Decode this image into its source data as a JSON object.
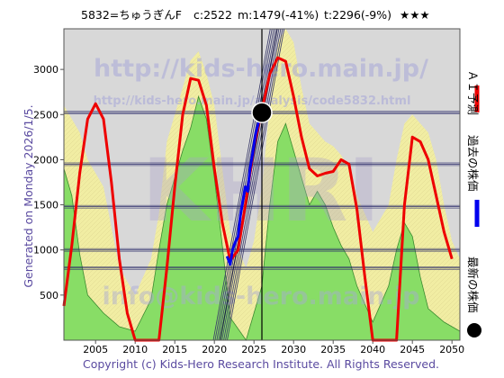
{
  "header": {
    "code_name": "5832=ちゅうぎんF",
    "current": "c:2522",
    "predicted_mean": "m:1479(-41%)",
    "target": "t:2296(-9%)",
    "rating": "★★★"
  },
  "left_label": "Generated on Monday 2026/1/5.",
  "footer": "Copyright (c) Kids-Hero Research Institute. All Rights Reserved.",
  "watermarks": {
    "url_main": "http://kids-hero.main.jp/",
    "url_sub": "http://kids-hero.main.jp/analysis/code5832.html",
    "logo": "KHRI",
    "email": "info@kids-hero.main.jp"
  },
  "legend": {
    "ai_forecast": "ＡＩ予測",
    "past_price": "過去の株価",
    "latest_price": "最新の株価"
  },
  "colors": {
    "forecast": "#ee0000",
    "past": "#0000ee",
    "latest": "#000000",
    "green_fill": "#88dd66",
    "yellow_fill": "#f2eea0",
    "band_lines": "#2a2a6a",
    "plot_bg": "#d8d8d8"
  },
  "chart_data": {
    "type": "line",
    "xlim": [
      2001,
      2051
    ],
    "ylim": [
      0,
      3450
    ],
    "x_ticks": [
      2005,
      2010,
      2015,
      2020,
      2025,
      2030,
      2035,
      2040,
      2045,
      2050
    ],
    "y_ticks": [
      500,
      1000,
      1500,
      2000,
      2500,
      3000
    ],
    "horizontal_lines": [
      2522,
      1950,
      1479,
      1000,
      800
    ],
    "vertical_line_x": 2026.0,
    "latest_point": {
      "x": 2026.0,
      "y": 2522
    },
    "ai_forecast": [
      [
        2001,
        380
      ],
      [
        2002,
        1050
      ],
      [
        2003,
        1850
      ],
      [
        2004,
        2450
      ],
      [
        2005,
        2620
      ],
      [
        2006,
        2450
      ],
      [
        2007,
        1750
      ],
      [
        2008,
        900
      ],
      [
        2009,
        300
      ],
      [
        2010,
        0
      ],
      [
        2013,
        0
      ],
      [
        2014,
        800
      ],
      [
        2015,
        1700
      ],
      [
        2016,
        2500
      ],
      [
        2017,
        2900
      ],
      [
        2018,
        2880
      ],
      [
        2019,
        2600
      ],
      [
        2020,
        1900
      ],
      [
        2021,
        1300
      ],
      [
        2022,
        880
      ],
      [
        2023,
        1000
      ],
      [
        2024,
        1550
      ],
      [
        2025,
        2150
      ],
      [
        2026,
        2550
      ],
      [
        2027,
        2950
      ],
      [
        2028,
        3130
      ],
      [
        2029,
        3090
      ],
      [
        2030,
        2700
      ],
      [
        2031,
        2250
      ],
      [
        2032,
        1900
      ],
      [
        2033,
        1820
      ],
      [
        2034,
        1850
      ],
      [
        2035,
        1870
      ],
      [
        2036,
        2000
      ],
      [
        2037,
        1950
      ],
      [
        2038,
        1450
      ],
      [
        2039,
        700
      ],
      [
        2040,
        0
      ],
      [
        2043,
        0
      ],
      [
        2044,
        1500
      ],
      [
        2045,
        2250
      ],
      [
        2046,
        2200
      ],
      [
        2047,
        2000
      ],
      [
        2048,
        1600
      ],
      [
        2049,
        1200
      ],
      [
        2050,
        900
      ]
    ],
    "past_price": [
      [
        2021.6,
        930
      ],
      [
        2022.0,
        840
      ],
      [
        2022.3,
        1000
      ],
      [
        2022.6,
        1080
      ],
      [
        2023.0,
        1150
      ],
      [
        2023.3,
        1390
      ],
      [
        2023.6,
        1550
      ],
      [
        2023.9,
        1700
      ],
      [
        2024.2,
        1650
      ],
      [
        2024.5,
        1900
      ],
      [
        2024.8,
        2050
      ],
      [
        2025.2,
        2280
      ],
      [
        2025.6,
        2420
      ],
      [
        2026.0,
        2522
      ]
    ],
    "bands_green_upper": [
      [
        2001,
        1900
      ],
      [
        2002,
        1600
      ],
      [
        2003,
        950
      ],
      [
        2004,
        500
      ],
      [
        2006,
        300
      ],
      [
        2008,
        150
      ],
      [
        2010,
        100
      ],
      [
        2012,
        450
      ],
      [
        2013,
        1000
      ],
      [
        2014,
        1500
      ],
      [
        2015,
        1800
      ],
      [
        2016,
        2100
      ],
      [
        2017,
        2350
      ],
      [
        2018,
        2700
      ],
      [
        2019,
        2450
      ],
      [
        2020,
        1800
      ],
      [
        2021,
        1050
      ],
      [
        2022,
        250
      ],
      [
        2024,
        0
      ],
      [
        2026,
        600
      ],
      [
        2027,
        1500
      ],
      [
        2028,
        2200
      ],
      [
        2029,
        2400
      ],
      [
        2030,
        2100
      ],
      [
        2031,
        1800
      ],
      [
        2032,
        1500
      ],
      [
        2033,
        1650
      ],
      [
        2034,
        1500
      ],
      [
        2035,
        1250
      ],
      [
        2036,
        1050
      ],
      [
        2037,
        900
      ],
      [
        2038,
        600
      ],
      [
        2040,
        200
      ],
      [
        2042,
        600
      ],
      [
        2043,
        1000
      ],
      [
        2044,
        1300
      ],
      [
        2045,
        1150
      ],
      [
        2046,
        700
      ],
      [
        2047,
        350
      ],
      [
        2049,
        200
      ],
      [
        2051,
        100
      ]
    ],
    "bands_yellow_upper": [
      [
        2001,
        2600
      ],
      [
        2003,
        2300
      ],
      [
        2004,
        2000
      ],
      [
        2006,
        1700
      ],
      [
        2008,
        800
      ],
      [
        2010,
        500
      ],
      [
        2012,
        900
      ],
      [
        2013,
        1400
      ],
      [
        2014,
        2200
      ],
      [
        2015,
        2500
      ],
      [
        2016,
        2800
      ],
      [
        2017,
        3100
      ],
      [
        2018,
        3200
      ],
      [
        2019,
        2950
      ],
      [
        2020,
        2600
      ],
      [
        2021,
        1900
      ],
      [
        2022,
        1200
      ],
      [
        2023,
        1000
      ],
      [
        2024,
        800
      ],
      [
        2025,
        1100
      ],
      [
        2026,
        1700
      ],
      [
        2027,
        2600
      ],
      [
        2028,
        3300
      ],
      [
        2029,
        3450
      ],
      [
        2030,
        3300
      ],
      [
        2031,
        2800
      ],
      [
        2032,
        2400
      ],
      [
        2033,
        2300
      ],
      [
        2034,
        2200
      ],
      [
        2035,
        2150
      ],
      [
        2036,
        2050
      ],
      [
        2037,
        1900
      ],
      [
        2038,
        1600
      ],
      [
        2040,
        1200
      ],
      [
        2042,
        1500
      ],
      [
        2043,
        2000
      ],
      [
        2044,
        2400
      ],
      [
        2045,
        2500
      ],
      [
        2046,
        2400
      ],
      [
        2047,
        2300
      ],
      [
        2048,
        2000
      ],
      [
        2049,
        1500
      ],
      [
        2050,
        1100
      ],
      [
        2051,
        900
      ]
    ]
  }
}
